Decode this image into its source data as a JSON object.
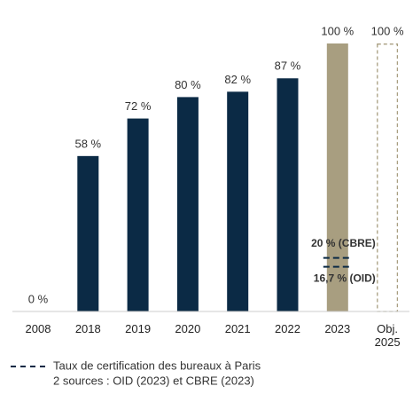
{
  "chart_data": {
    "type": "bar",
    "categories": [
      "2008",
      "2018",
      "2019",
      "2020",
      "2021",
      "2022",
      "2023",
      "Obj.\n2025"
    ],
    "values": [
      0,
      58,
      72,
      80,
      82,
      87,
      100,
      100
    ],
    "value_labels": [
      "0 %",
      "58 %",
      "72 %",
      "80 %",
      "82 %",
      "87 %",
      "100 %",
      "100 %"
    ],
    "colors": [
      "#0b2a45",
      "#0b2a45",
      "#0b2a45",
      "#0b2a45",
      "#0b2a45",
      "#0b2a45",
      "#a89e80",
      "#a89e80"
    ],
    "outline_only": [
      false,
      false,
      false,
      false,
      false,
      false,
      false,
      true
    ],
    "markers": {
      "category": 6,
      "color": "#0b2a45",
      "items": [
        {
          "label": "20 % (CBRE)",
          "value": 20
        },
        {
          "label": "16,7 % (OID)",
          "value": 16.7
        }
      ]
    },
    "legend_lines": [
      "Taux de certification des bureaux à Paris",
      "2 sources : OID (2023) et CBRE (2023)"
    ]
  }
}
